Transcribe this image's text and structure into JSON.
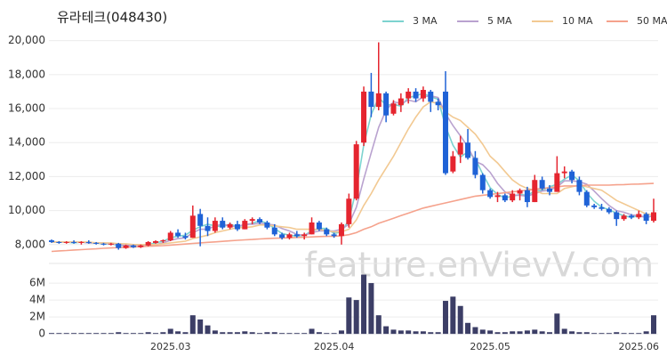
{
  "chart_data": {
    "type": "candlestick",
    "title": "유라테크(048430)",
    "watermark": "feature.enVievV.com",
    "categories": [
      null,
      null,
      null,
      null,
      null,
      null,
      null,
      null,
      null,
      null,
      null,
      null,
      null,
      null,
      null,
      null,
      "2025.03",
      null,
      null,
      null,
      null,
      null,
      null,
      null,
      null,
      null,
      null,
      null,
      null,
      null,
      null,
      null,
      null,
      null,
      null,
      null,
      null,
      null,
      "2025.04",
      null,
      null,
      null,
      null,
      null,
      null,
      null,
      null,
      null,
      null,
      null,
      null,
      null,
      null,
      null,
      null,
      null,
      null,
      null,
      null,
      "2025.05",
      null,
      null,
      null,
      null,
      null,
      null,
      null,
      null,
      null,
      null,
      null,
      null,
      null,
      null,
      null,
      null,
      null,
      null,
      null,
      "2025.06",
      null,
      null
    ],
    "open": [
      8250,
      8150,
      8100,
      8150,
      8100,
      8150,
      8100,
      8050,
      8000,
      8050,
      7800,
      7950,
      7850,
      7950,
      8100,
      8200,
      8250,
      8700,
      8500,
      8400,
      9800,
      9100,
      8800,
      9400,
      9000,
      9200,
      8900,
      9400,
      9500,
      9300,
      9000,
      8600,
      8400,
      8600,
      8500,
      8600,
      9300,
      8900,
      8600,
      8500,
      9200,
      10700,
      14000,
      17000,
      16100,
      16900,
      15700,
      16200,
      16600,
      17000,
      16600,
      17000,
      16400,
      17000,
      12300,
      13300,
      14000,
      13100,
      12100,
      11200,
      10800,
      10900,
      10600,
      11000,
      11200,
      10500,
      11800,
      11300,
      11100,
      12200,
      12300,
      11800,
      11100,
      10300,
      10200,
      10100,
      9900,
      9500,
      9700,
      9600,
      9800,
      9400
    ],
    "high": [
      8300,
      8200,
      8200,
      8250,
      8200,
      8250,
      8150,
      8100,
      8100,
      8100,
      8000,
      8000,
      8000,
      8200,
      8250,
      8300,
      8800,
      8900,
      8700,
      10300,
      10100,
      9600,
      9600,
      9600,
      9300,
      9400,
      9500,
      9600,
      9600,
      9400,
      9200,
      8700,
      8700,
      8800,
      8700,
      9600,
      9400,
      9000,
      8700,
      9300,
      11000,
      14100,
      17300,
      18100,
      19900,
      17000,
      16500,
      16900,
      17200,
      17200,
      17300,
      17100,
      16600,
      18200,
      13500,
      14400,
      14800,
      13500,
      12200,
      11300,
      11100,
      11000,
      11200,
      11300,
      11400,
      12100,
      12000,
      11500,
      13200,
      12600,
      12400,
      12000,
      11200,
      10400,
      10400,
      10200,
      10000,
      9800,
      9800,
      10000,
      9900,
      10700
    ],
    "low": [
      8100,
      8050,
      8050,
      8050,
      8000,
      8050,
      8000,
      7950,
      7950,
      7700,
      7750,
      7800,
      7800,
      7900,
      8050,
      8100,
      8200,
      8400,
      8300,
      8400,
      7900,
      8500,
      8700,
      8900,
      8900,
      8800,
      8900,
      9200,
      9200,
      8900,
      8500,
      8300,
      8300,
      8400,
      8300,
      8600,
      8800,
      8500,
      8400,
      8000,
      9000,
      10600,
      13800,
      15500,
      15900,
      15200,
      15600,
      15800,
      16300,
      16400,
      16400,
      15800,
      15900,
      12100,
      12200,
      12800,
      13000,
      11900,
      11000,
      10700,
      10500,
      10500,
      10500,
      10600,
      10200,
      10500,
      11200,
      10900,
      11100,
      11900,
      11600,
      10900,
      10200,
      10100,
      10000,
      9800,
      9100,
      9400,
      9500,
      9500,
      9200,
      9300
    ],
    "close": [
      8150,
      8100,
      8150,
      8100,
      8150,
      8100,
      8050,
      8000,
      8050,
      7800,
      7950,
      7850,
      7950,
      8150,
      8200,
      8250,
      8700,
      8500,
      8400,
      9700,
      9100,
      8800,
      9400,
      9000,
      9200,
      8900,
      9400,
      9500,
      9300,
      9000,
      8600,
      8400,
      8600,
      8500,
      8600,
      9300,
      8900,
      8600,
      8500,
      9200,
      10700,
      13900,
      17000,
      16100,
      16900,
      15600,
      16300,
      16600,
      17000,
      16600,
      17100,
      16400,
      16200,
      12200,
      13200,
      14000,
      13100,
      12100,
      11200,
      10800,
      10900,
      10600,
      11000,
      11200,
      10500,
      11800,
      11300,
      11100,
      12200,
      12300,
      11800,
      11100,
      10300,
      10200,
      10100,
      9900,
      9500,
      9700,
      9600,
      9800,
      9400,
      9900
    ],
    "up_color": "#e5252f",
    "down_color": "#1f62d6",
    "volume": [
      0.1,
      0.1,
      0.1,
      0.1,
      0.1,
      0.1,
      0.1,
      0.1,
      0.1,
      0.2,
      0.1,
      0.1,
      0.1,
      0.2,
      0.1,
      0.2,
      0.6,
      0.3,
      0.2,
      2.2,
      1.7,
      1.0,
      0.4,
      0.2,
      0.2,
      0.2,
      0.3,
      0.2,
      0.1,
      0.2,
      0.2,
      0.1,
      0.1,
      0.1,
      0.1,
      0.6,
      0.2,
      0.1,
      0.1,
      0.4,
      4.3,
      4.0,
      7.0,
      6.0,
      2.2,
      0.9,
      0.5,
      0.4,
      0.4,
      0.3,
      0.3,
      0.2,
      0.2,
      3.9,
      4.4,
      3.3,
      1.3,
      0.8,
      0.5,
      0.4,
      0.2,
      0.2,
      0.3,
      0.3,
      0.4,
      0.5,
      0.3,
      0.2,
      2.4,
      0.6,
      0.3,
      0.2,
      0.2,
      0.1,
      0.1,
      0.1,
      0.2,
      0.1,
      0.1,
      0.1,
      0.3,
      2.2
    ],
    "volume_color": "#3c3e66",
    "series": [
      {
        "name": "3 MA",
        "color": "#7dd3cf",
        "values": [
          8150,
          8150,
          8150,
          8100,
          8150,
          8100,
          8100,
          8050,
          8050,
          7950,
          7950,
          7850,
          7900,
          8000,
          8100,
          8200,
          8400,
          8500,
          8550,
          8850,
          9050,
          9200,
          9100,
          9050,
          9200,
          9050,
          9150,
          9250,
          9400,
          9250,
          8950,
          8650,
          8550,
          8500,
          8550,
          8800,
          8950,
          8950,
          8650,
          8750,
          9450,
          11250,
          13850,
          15650,
          16650,
          16200,
          16250,
          16150,
          16650,
          16750,
          16900,
          16700,
          16550,
          14950,
          13850,
          13150,
          13450,
          13050,
          12150,
          11350,
          10950,
          10750,
          10850,
          10950,
          10900,
          11150,
          11200,
          11400,
          11550,
          11850,
          12100,
          11750,
          11050,
          10550,
          10200,
          10050,
          9850,
          9700,
          9600,
          9700,
          9600,
          9700
        ]
      },
      {
        "name": "5 MA",
        "color": "#b9a2cf",
        "values": [
          8150,
          8150,
          8150,
          8150,
          8150,
          8100,
          8100,
          8100,
          8050,
          8000,
          7950,
          7950,
          7900,
          7950,
          8000,
          8100,
          8250,
          8350,
          8400,
          8700,
          8900,
          8900,
          9100,
          9200,
          9100,
          9050,
          9200,
          9200,
          9250,
          9200,
          9150,
          8950,
          8800,
          8600,
          8550,
          8700,
          8800,
          8800,
          8800,
          8900,
          9200,
          10200,
          11850,
          13400,
          14900,
          15900,
          16400,
          16300,
          16500,
          16400,
          16700,
          16750,
          16650,
          15700,
          15000,
          14400,
          13750,
          12900,
          12700,
          12250,
          11600,
          11100,
          10900,
          10900,
          10850,
          11000,
          11150,
          11200,
          11400,
          11750,
          11750,
          11700,
          11550,
          11150,
          10700,
          10300,
          10000,
          9900,
          9750,
          9700,
          9600,
          9700
        ]
      },
      {
        "name": "10 MA",
        "color": "#f2c992",
        "values": [
          8150,
          8150,
          8150,
          8150,
          8150,
          8150,
          8100,
          8100,
          8100,
          8050,
          8050,
          8000,
          8000,
          8000,
          8000,
          8050,
          8100,
          8150,
          8200,
          8350,
          8450,
          8550,
          8700,
          8800,
          8900,
          9000,
          9000,
          9050,
          9150,
          9150,
          9100,
          9050,
          9000,
          8900,
          8900,
          8900,
          8900,
          8800,
          8750,
          8750,
          8900,
          9450,
          10300,
          11000,
          11800,
          12500,
          13200,
          14000,
          14800,
          15500,
          16100,
          16400,
          16300,
          15800,
          15500,
          15300,
          14900,
          14500,
          13900,
          13200,
          12800,
          12300,
          11800,
          11500,
          11300,
          11200,
          11000,
          11000,
          11000,
          11300,
          11400,
          11500,
          11400,
          11300,
          11200,
          10900,
          10600,
          10400,
          10200,
          10000,
          9800,
          9750
        ]
      },
      {
        "name": "50 MA",
        "color": "#f5a28c",
        "values": [
          7600,
          7630,
          7650,
          7680,
          7700,
          7730,
          7750,
          7780,
          7800,
          7820,
          7840,
          7860,
          7880,
          7900,
          7920,
          7940,
          7970,
          8000,
          8030,
          8070,
          8100,
          8130,
          8160,
          8190,
          8220,
          8250,
          8280,
          8300,
          8330,
          8350,
          8370,
          8390,
          8400,
          8420,
          8430,
          8450,
          8470,
          8480,
          8490,
          8520,
          8580,
          8700,
          8900,
          9050,
          9250,
          9400,
          9550,
          9700,
          9850,
          10000,
          10150,
          10250,
          10350,
          10450,
          10550,
          10650,
          10750,
          10850,
          10900,
          10950,
          11000,
          11050,
          11100,
          11150,
          11200,
          11250,
          11300,
          11350,
          11400,
          11450,
          11450,
          11450,
          11500,
          11500,
          11500,
          11500,
          11520,
          11530,
          11550,
          11560,
          11580,
          11600
        ]
      }
    ],
    "ylim": [
      7100,
      20400
    ],
    "yticks": [
      {
        "value": 8000,
        "label": "8,000"
      },
      {
        "value": 10000,
        "label": "10,000"
      },
      {
        "value": 12000,
        "label": "12,000"
      },
      {
        "value": 14000,
        "label": "14,000"
      },
      {
        "value": 16000,
        "label": "16,000"
      },
      {
        "value": 18000,
        "label": "18,000"
      },
      {
        "value": 20000,
        "label": "20,000"
      }
    ],
    "volume_ylim": [
      -0.3,
      7.9
    ],
    "volume_yticks": [
      0,
      {
        "value": 2,
        "label": "2M"
      },
      {
        "value": 4,
        "label": "4M"
      },
      {
        "value": 6,
        "label": "6M"
      }
    ],
    "grid": true,
    "legend_position": "top-right"
  }
}
